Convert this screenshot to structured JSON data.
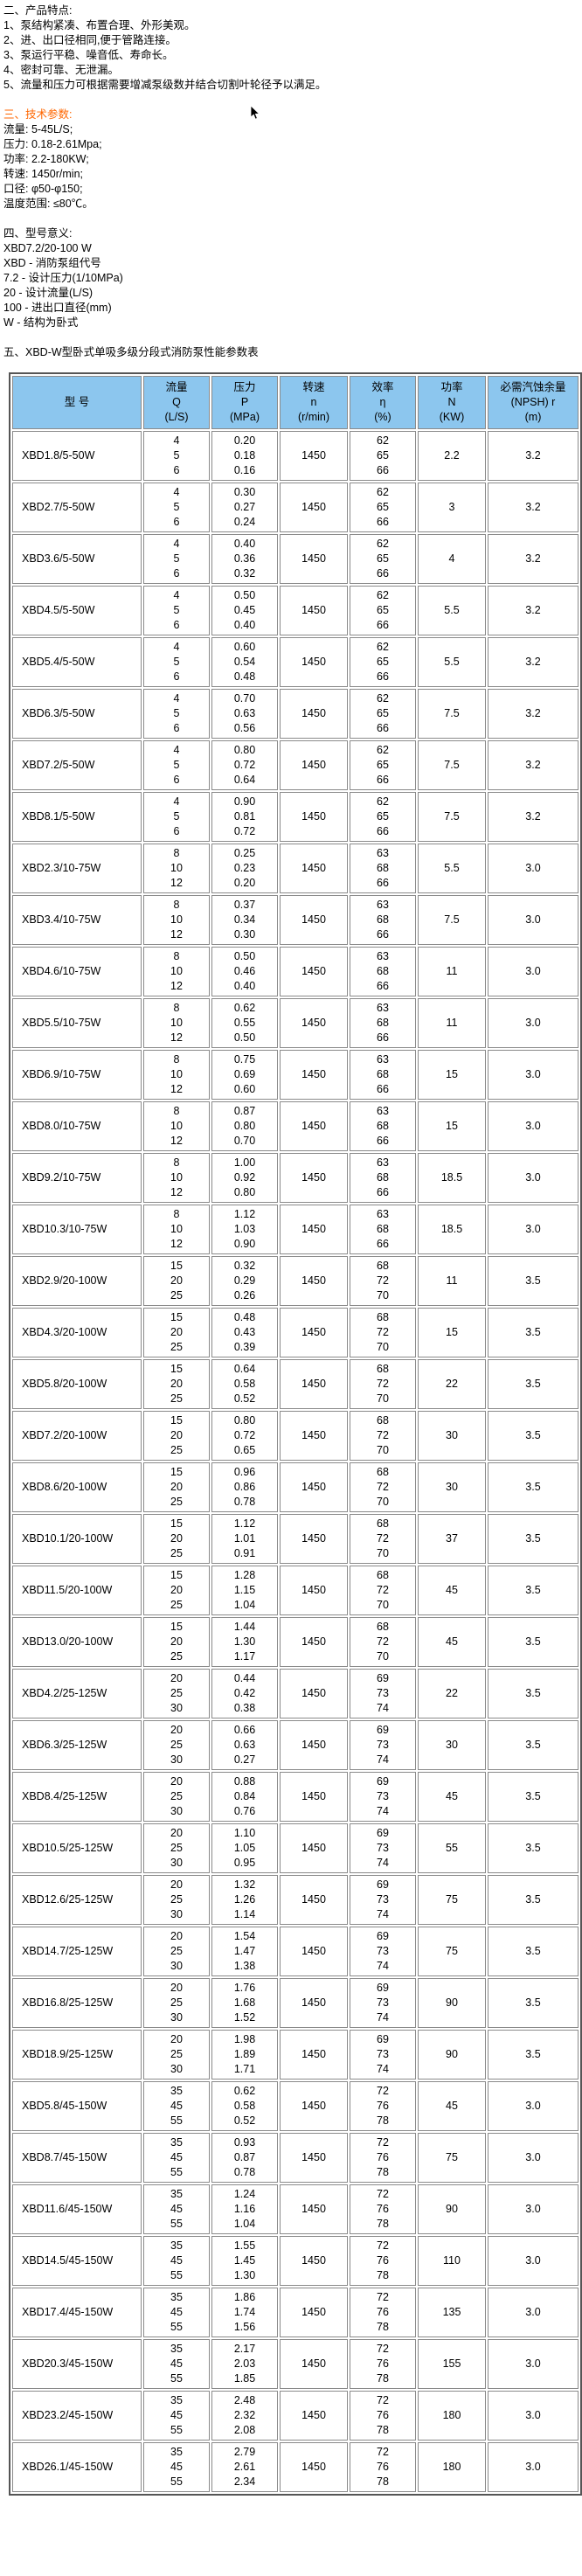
{
  "colors": {
    "header_bg": "#8CC6EE",
    "section_accent": "#FF6600",
    "text": "#000000",
    "table_outer_border": "#555555",
    "table_cell_border": "#8A8A8A"
  },
  "sections": {
    "features": {
      "title": "二、产品特点:",
      "items": [
        "1、泵结构紧凑、布置合理、外形美观。",
        "2、进、出口径相同,便于管路连接。",
        "3、泵运行平稳、噪音低、寿命长。",
        "4、密封可靠、无泄漏。",
        "5、流量和压力可根据需要增减泵级数并结合切割叶轮径予以满足。"
      ]
    },
    "tech_params": {
      "title": "三、技术参数:",
      "items": [
        "流量: 5-45L/S;",
        "压力: 0.18-2.61Mpa;",
        "功率: 2.2-180KW;",
        "转速: 1450r/min;",
        "口径: φ50-φ150;",
        "温度范围: ≤80℃。"
      ]
    },
    "model_meaning": {
      "title": "四、型号意义:",
      "items": [
        "XBD7.2/20-100 W",
        "XBD - 消防泵组代号",
        "7.2 - 设计压力(1/10MPa)",
        "20 - 设计流量(L/S)",
        "100 - 进出口直径(mm)",
        "W - 结构为卧式"
      ]
    },
    "table_title": "五、XBD-W型卧式单吸多级分段式消防泵性能参数表"
  },
  "performance_table": {
    "type": "table",
    "columns": [
      {
        "key": "model",
        "name": "col-header-model",
        "lines": [
          "型 号"
        ]
      },
      {
        "key": "q",
        "name": "col-header-flow",
        "lines": [
          "流量",
          "Q",
          "(L/S)"
        ]
      },
      {
        "key": "p",
        "name": "col-header-pressure",
        "lines": [
          "压力",
          "P",
          "(MPa)"
        ]
      },
      {
        "key": "n",
        "name": "col-header-speed",
        "lines": [
          "转速",
          "n",
          "(r/min)"
        ]
      },
      {
        "key": "eta",
        "name": "col-header-efficiency",
        "lines": [
          "效率",
          "η",
          "(%)"
        ]
      },
      {
        "key": "power",
        "name": "col-header-power",
        "lines": [
          "功率",
          "N",
          "(KW)"
        ]
      },
      {
        "key": "npsh",
        "name": "col-header-npsh",
        "lines": [
          "必需汽蚀余量",
          "(NPSH) r",
          "(m)"
        ]
      }
    ],
    "rows": [
      {
        "model": "XBD1.8/5-50W",
        "q": [
          "4",
          "5",
          "6"
        ],
        "p": [
          "0.20",
          "0.18",
          "0.16"
        ],
        "n": "1450",
        "eta": [
          "62",
          "65",
          "66"
        ],
        "power": "2.2",
        "npsh": "3.2"
      },
      {
        "model": "XBD2.7/5-50W",
        "q": [
          "4",
          "5",
          "6"
        ],
        "p": [
          "0.30",
          "0.27",
          "0.24"
        ],
        "n": "1450",
        "eta": [
          "62",
          "65",
          "66"
        ],
        "power": "3",
        "npsh": "3.2"
      },
      {
        "model": "XBD3.6/5-50W",
        "q": [
          "4",
          "5",
          "6"
        ],
        "p": [
          "0.40",
          "0.36",
          "0.32"
        ],
        "n": "1450",
        "eta": [
          "62",
          "65",
          "66"
        ],
        "power": "4",
        "npsh": "3.2"
      },
      {
        "model": "XBD4.5/5-50W",
        "q": [
          "4",
          "5",
          "6"
        ],
        "p": [
          "0.50",
          "0.45",
          "0.40"
        ],
        "n": "1450",
        "eta": [
          "62",
          "65",
          "66"
        ],
        "power": "5.5",
        "npsh": "3.2"
      },
      {
        "model": "XBD5.4/5-50W",
        "q": [
          "4",
          "5",
          "6"
        ],
        "p": [
          "0.60",
          "0.54",
          "0.48"
        ],
        "n": "1450",
        "eta": [
          "62",
          "65",
          "66"
        ],
        "power": "5.5",
        "npsh": "3.2"
      },
      {
        "model": "XBD6.3/5-50W",
        "q": [
          "4",
          "5",
          "6"
        ],
        "p": [
          "0.70",
          "0.63",
          "0.56"
        ],
        "n": "1450",
        "eta": [
          "62",
          "65",
          "66"
        ],
        "power": "7.5",
        "npsh": "3.2"
      },
      {
        "model": "XBD7.2/5-50W",
        "q": [
          "4",
          "5",
          "6"
        ],
        "p": [
          "0.80",
          "0.72",
          "0.64"
        ],
        "n": "1450",
        "eta": [
          "62",
          "65",
          "66"
        ],
        "power": "7.5",
        "npsh": "3.2"
      },
      {
        "model": "XBD8.1/5-50W",
        "q": [
          "4",
          "5",
          "6"
        ],
        "p": [
          "0.90",
          "0.81",
          "0.72"
        ],
        "n": "1450",
        "eta": [
          "62",
          "65",
          "66"
        ],
        "power": "7.5",
        "npsh": "3.2"
      },
      {
        "model": "XBD2.3/10-75W",
        "q": [
          "8",
          "10",
          "12"
        ],
        "p": [
          "0.25",
          "0.23",
          "0.20"
        ],
        "n": "1450",
        "eta": [
          "63",
          "68",
          "66"
        ],
        "power": "5.5",
        "npsh": "3.0"
      },
      {
        "model": "XBD3.4/10-75W",
        "q": [
          "8",
          "10",
          "12"
        ],
        "p": [
          "0.37",
          "0.34",
          "0.30"
        ],
        "n": "1450",
        "eta": [
          "63",
          "68",
          "66"
        ],
        "power": "7.5",
        "npsh": "3.0"
      },
      {
        "model": "XBD4.6/10-75W",
        "q": [
          "8",
          "10",
          "12"
        ],
        "p": [
          "0.50",
          "0.46",
          "0.40"
        ],
        "n": "1450",
        "eta": [
          "63",
          "68",
          "66"
        ],
        "power": "11",
        "npsh": "3.0"
      },
      {
        "model": "XBD5.5/10-75W",
        "q": [
          "8",
          "10",
          "12"
        ],
        "p": [
          "0.62",
          "0.55",
          "0.50"
        ],
        "n": "1450",
        "eta": [
          "63",
          "68",
          "66"
        ],
        "power": "11",
        "npsh": "3.0"
      },
      {
        "model": "XBD6.9/10-75W",
        "q": [
          "8",
          "10",
          "12"
        ],
        "p": [
          "0.75",
          "0.69",
          "0.60"
        ],
        "n": "1450",
        "eta": [
          "63",
          "68",
          "66"
        ],
        "power": "15",
        "npsh": "3.0"
      },
      {
        "model": "XBD8.0/10-75W",
        "q": [
          "8",
          "10",
          "12"
        ],
        "p": [
          "0.87",
          "0.80",
          "0.70"
        ],
        "n": "1450",
        "eta": [
          "63",
          "68",
          "66"
        ],
        "power": "15",
        "npsh": "3.0"
      },
      {
        "model": "XBD9.2/10-75W",
        "q": [
          "8",
          "10",
          "12"
        ],
        "p": [
          "1.00",
          "0.92",
          "0.80"
        ],
        "n": "1450",
        "eta": [
          "63",
          "68",
          "66"
        ],
        "power": "18.5",
        "npsh": "3.0"
      },
      {
        "model": "XBD10.3/10-75W",
        "q": [
          "8",
          "10",
          "12"
        ],
        "p": [
          "1.12",
          "1.03",
          "0.90"
        ],
        "n": "1450",
        "eta": [
          "63",
          "68",
          "66"
        ],
        "power": "18.5",
        "npsh": "3.0"
      },
      {
        "model": "XBD2.9/20-100W",
        "q": [
          "15",
          "20",
          "25"
        ],
        "p": [
          "0.32",
          "0.29",
          "0.26"
        ],
        "n": "1450",
        "eta": [
          "68",
          "72",
          "70"
        ],
        "power": "11",
        "npsh": "3.5"
      },
      {
        "model": "XBD4.3/20-100W",
        "q": [
          "15",
          "20",
          "25"
        ],
        "p": [
          "0.48",
          "0.43",
          "0.39"
        ],
        "n": "1450",
        "eta": [
          "68",
          "72",
          "70"
        ],
        "power": "15",
        "npsh": "3.5"
      },
      {
        "model": "XBD5.8/20-100W",
        "q": [
          "15",
          "20",
          "25"
        ],
        "p": [
          "0.64",
          "0.58",
          "0.52"
        ],
        "n": "1450",
        "eta": [
          "68",
          "72",
          "70"
        ],
        "power": "22",
        "npsh": "3.5"
      },
      {
        "model": "XBD7.2/20-100W",
        "q": [
          "15",
          "20",
          "25"
        ],
        "p": [
          "0.80",
          "0.72",
          "0.65"
        ],
        "n": "1450",
        "eta": [
          "68",
          "72",
          "70"
        ],
        "power": "30",
        "npsh": "3.5"
      },
      {
        "model": "XBD8.6/20-100W",
        "q": [
          "15",
          "20",
          "25"
        ],
        "p": [
          "0.96",
          "0.86",
          "0.78"
        ],
        "n": "1450",
        "eta": [
          "68",
          "72",
          "70"
        ],
        "power": "30",
        "npsh": "3.5"
      },
      {
        "model": "XBD10.1/20-100W",
        "q": [
          "15",
          "20",
          "25"
        ],
        "p": [
          "1.12",
          "1.01",
          "0.91"
        ],
        "n": "1450",
        "eta": [
          "68",
          "72",
          "70"
        ],
        "power": "37",
        "npsh": "3.5"
      },
      {
        "model": "XBD11.5/20-100W",
        "q": [
          "15",
          "20",
          "25"
        ],
        "p": [
          "1.28",
          "1.15",
          "1.04"
        ],
        "n": "1450",
        "eta": [
          "68",
          "72",
          "70"
        ],
        "power": "45",
        "npsh": "3.5"
      },
      {
        "model": "XBD13.0/20-100W",
        "q": [
          "15",
          "20",
          "25"
        ],
        "p": [
          "1.44",
          "1.30",
          "1.17"
        ],
        "n": "1450",
        "eta": [
          "68",
          "72",
          "70"
        ],
        "power": "45",
        "npsh": "3.5"
      },
      {
        "model": "XBD4.2/25-125W",
        "q": [
          "20",
          "25",
          "30"
        ],
        "p": [
          "0.44",
          "0.42",
          "0.38"
        ],
        "n": "1450",
        "eta": [
          "69",
          "73",
          "74"
        ],
        "power": "22",
        "npsh": "3.5"
      },
      {
        "model": "XBD6.3/25-125W",
        "q": [
          "20",
          "25",
          "30"
        ],
        "p": [
          "0.66",
          "0.63",
          "0.27"
        ],
        "n": "1450",
        "eta": [
          "69",
          "73",
          "74"
        ],
        "power": "30",
        "npsh": "3.5"
      },
      {
        "model": "XBD8.4/25-125W",
        "q": [
          "20",
          "25",
          "30"
        ],
        "p": [
          "0.88",
          "0.84",
          "0.76"
        ],
        "n": "1450",
        "eta": [
          "69",
          "73",
          "74"
        ],
        "power": "45",
        "npsh": "3.5"
      },
      {
        "model": "XBD10.5/25-125W",
        "q": [
          "20",
          "25",
          "30"
        ],
        "p": [
          "1.10",
          "1.05",
          "0.95"
        ],
        "n": "1450",
        "eta": [
          "69",
          "73",
          "74"
        ],
        "power": "55",
        "npsh": "3.5"
      },
      {
        "model": "XBD12.6/25-125W",
        "q": [
          "20",
          "25",
          "30"
        ],
        "p": [
          "1.32",
          "1.26",
          "1.14"
        ],
        "n": "1450",
        "eta": [
          "69",
          "73",
          "74"
        ],
        "power": "75",
        "npsh": "3.5"
      },
      {
        "model": "XBD14.7/25-125W",
        "q": [
          "20",
          "25",
          "30"
        ],
        "p": [
          "1.54",
          "1.47",
          "1.38"
        ],
        "n": "1450",
        "eta": [
          "69",
          "73",
          "74"
        ],
        "power": "75",
        "npsh": "3.5"
      },
      {
        "model": "XBD16.8/25-125W",
        "q": [
          "20",
          "25",
          "30"
        ],
        "p": [
          "1.76",
          "1.68",
          "1.52"
        ],
        "n": "1450",
        "eta": [
          "69",
          "73",
          "74"
        ],
        "power": "90",
        "npsh": "3.5"
      },
      {
        "model": "XBD18.9/25-125W",
        "q": [
          "20",
          "25",
          "30"
        ],
        "p": [
          "1.98",
          "1.89",
          "1.71"
        ],
        "n": "1450",
        "eta": [
          "69",
          "73",
          "74"
        ],
        "power": "90",
        "npsh": "3.5"
      },
      {
        "model": "XBD5.8/45-150W",
        "q": [
          "35",
          "45",
          "55"
        ],
        "p": [
          "0.62",
          "0.58",
          "0.52"
        ],
        "n": "1450",
        "eta": [
          "72",
          "76",
          "78"
        ],
        "power": "45",
        "npsh": "3.0"
      },
      {
        "model": "XBD8.7/45-150W",
        "q": [
          "35",
          "45",
          "55"
        ],
        "p": [
          "0.93",
          "0.87",
          "0.78"
        ],
        "n": "1450",
        "eta": [
          "72",
          "76",
          "78"
        ],
        "power": "75",
        "npsh": "3.0"
      },
      {
        "model": "XBD11.6/45-150W",
        "q": [
          "35",
          "45",
          "55"
        ],
        "p": [
          "1.24",
          "1.16",
          "1.04"
        ],
        "n": "1450",
        "eta": [
          "72",
          "76",
          "78"
        ],
        "power": "90",
        "npsh": "3.0"
      },
      {
        "model": "XBD14.5/45-150W",
        "q": [
          "35",
          "45",
          "55"
        ],
        "p": [
          "1.55",
          "1.45",
          "1.30"
        ],
        "n": "1450",
        "eta": [
          "72",
          "76",
          "78"
        ],
        "power": "110",
        "npsh": "3.0"
      },
      {
        "model": "XBD17.4/45-150W",
        "q": [
          "35",
          "45",
          "55"
        ],
        "p": [
          "1.86",
          "1.74",
          "1.56"
        ],
        "n": "1450",
        "eta": [
          "72",
          "76",
          "78"
        ],
        "power": "135",
        "npsh": "3.0"
      },
      {
        "model": "XBD20.3/45-150W",
        "q": [
          "35",
          "45",
          "55"
        ],
        "p": [
          "2.17",
          "2.03",
          "1.85"
        ],
        "n": "1450",
        "eta": [
          "72",
          "76",
          "78"
        ],
        "power": "155",
        "npsh": "3.0"
      },
      {
        "model": "XBD23.2/45-150W",
        "q": [
          "35",
          "45",
          "55"
        ],
        "p": [
          "2.48",
          "2.32",
          "2.08"
        ],
        "n": "1450",
        "eta": [
          "72",
          "76",
          "78"
        ],
        "power": "180",
        "npsh": "3.0"
      },
      {
        "model": "XBD26.1/45-150W",
        "q": [
          "35",
          "45",
          "55"
        ],
        "p": [
          "2.79",
          "2.61",
          "2.34"
        ],
        "n": "1450",
        "eta": [
          "72",
          "76",
          "78"
        ],
        "power": "180",
        "npsh": "3.0"
      }
    ]
  }
}
